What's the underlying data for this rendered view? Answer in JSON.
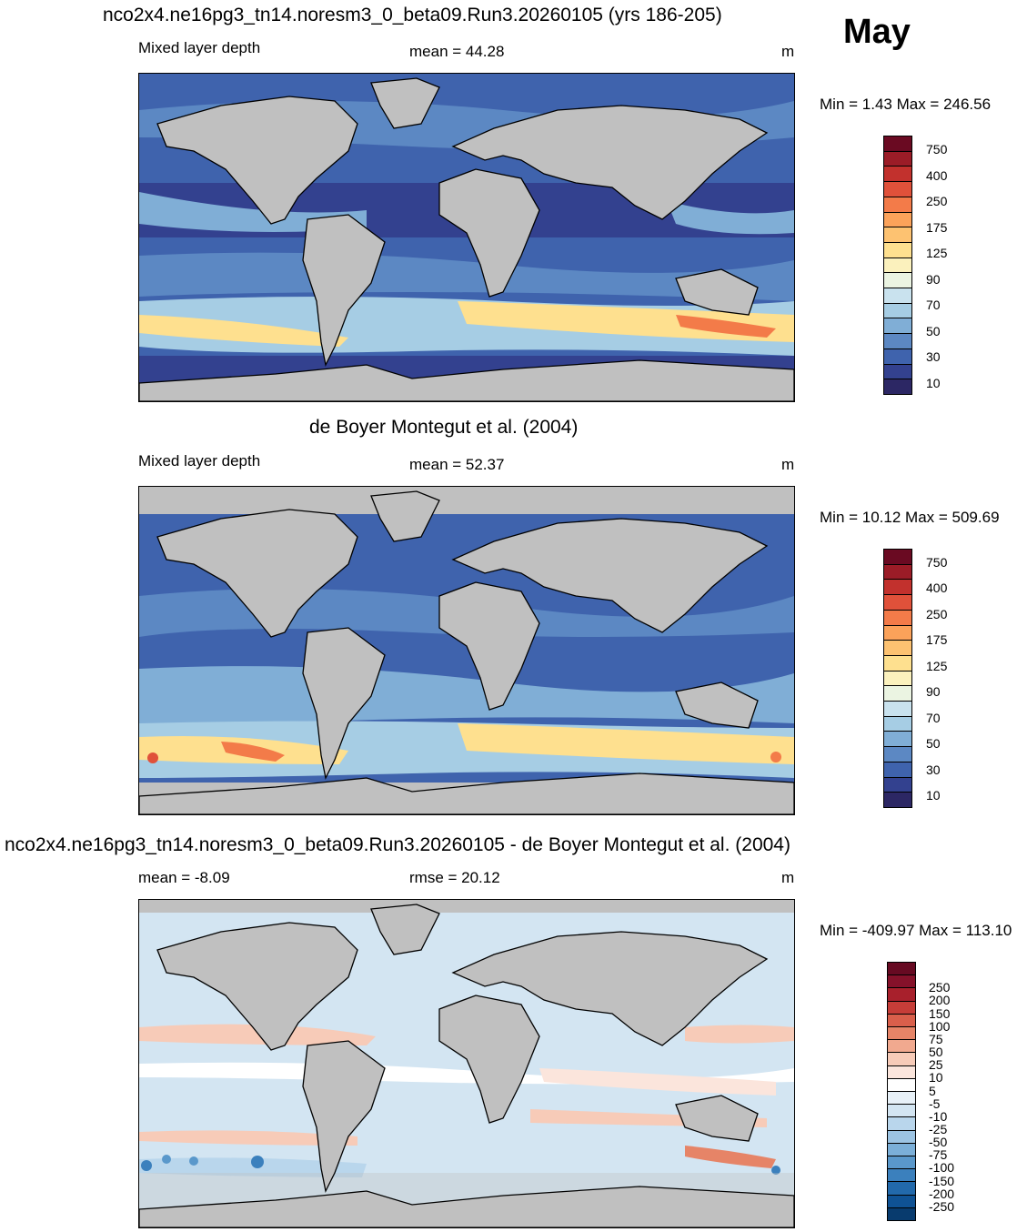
{
  "header": {
    "title": "nco2x4.ne16pg3_tn14.noresm3_0_beta09.Run3.20260105 (yrs 186-205)",
    "month": "May"
  },
  "panels": [
    {
      "variable": "Mixed layer depth",
      "stat_text": "mean =  44.28",
      "units": "m",
      "minmax_text": "Min =   1.43 Max = 246.56"
    },
    {
      "heading": "de Boyer Montegut et al. (2004)",
      "variable": "Mixed layer depth",
      "stat_text": "mean =  52.37",
      "units": "m",
      "minmax_text": "Min =  10.12 Max = 509.69"
    },
    {
      "heading": "nco2x4.ne16pg3_tn14.noresm3_0_beta09.Run3.20260105 - de Boyer Montegut et al. (2004)",
      "variable": "mean =  -8.09",
      "stat_text": "rmse =  20.12",
      "units": "m",
      "minmax_text": "Min = -409.97 Max = 113.10"
    }
  ],
  "colorbars": {
    "mld": {
      "labels": [
        "10",
        "30",
        "50",
        "70",
        "90",
        "125",
        "175",
        "250",
        "400",
        "750"
      ],
      "colors": [
        "#2c2764",
        "#33418f",
        "#3f63ad",
        "#5c88c3",
        "#80aed6",
        "#a6cde4",
        "#c9e2ee",
        "#ebf4e2",
        "#fbf1bd",
        "#fee08f",
        "#fdc271",
        "#fba25a",
        "#f37b49",
        "#e0513a",
        "#c2312d",
        "#9b1c27",
        "#6a0a22"
      ]
    },
    "diff": {
      "labels": [
        "-250",
        "-200",
        "-150",
        "-100",
        "-75",
        "-50",
        "-25",
        "-10",
        "-5",
        "5",
        "10",
        "25",
        "50",
        "75",
        "100",
        "150",
        "200",
        "250"
      ],
      "colors": [
        "#083b6e",
        "#0f5294",
        "#2269ab",
        "#3b80bd",
        "#5a98cb",
        "#7bafd8",
        "#9cc4e3",
        "#b9d6ec",
        "#d3e5f2",
        "#e8f1f8",
        "#ffffff",
        "#fbe5dc",
        "#f7cbb8",
        "#f1a98f",
        "#e68467",
        "#d95f4b",
        "#c63d38",
        "#a8202c",
        "#85112a",
        "#670a22"
      ]
    }
  },
  "map": {
    "ocean_base": "#3d55a0",
    "land": "#c0c0c0",
    "obs_mask": "#c0c0c0"
  }
}
